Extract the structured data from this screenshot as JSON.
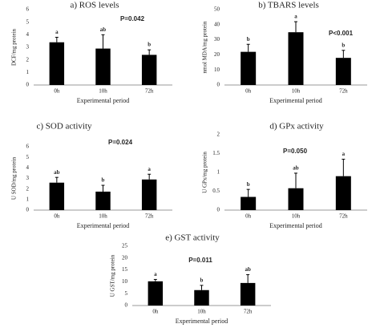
{
  "chart_data": [
    {
      "type": "bar",
      "title": "a) ROS levels",
      "annotation": "P=0.042",
      "xlabel": "Experimental period",
      "ylabel": "DCF/mg protein",
      "color": "#000000",
      "categories": [
        "0h",
        "10h",
        "72h"
      ],
      "values": [
        3.4,
        2.9,
        2.4
      ],
      "errors": [
        0.4,
        1.1,
        0.4
      ],
      "letters": [
        "a",
        "ab",
        "b"
      ],
      "ylim": [
        0,
        6
      ],
      "yticks": [
        0,
        1,
        2,
        3,
        4,
        5,
        6
      ]
    },
    {
      "type": "bar",
      "title": "b) TBARS levels",
      "annotation": "P<0.001",
      "xlabel": "Experimental period",
      "ylabel": "nmol MDA/mg protein",
      "color": "#000000",
      "categories": [
        "0h",
        "10h",
        "72h"
      ],
      "values": [
        22,
        35,
        18
      ],
      "errors": [
        5,
        7,
        5
      ],
      "letters": [
        "b",
        "a",
        "b"
      ],
      "ylim": [
        0,
        50
      ],
      "yticks": [
        0,
        10,
        20,
        30,
        40,
        50
      ]
    },
    {
      "type": "bar",
      "title": "c) SOD activity",
      "annotation": "P=0.024",
      "xlabel": "Experimental period",
      "ylabel": "U SOD/mg protein",
      "color": "#000000",
      "categories": [
        "0h",
        "10h",
        "72h"
      ],
      "values": [
        2.6,
        1.75,
        2.9
      ],
      "errors": [
        0.5,
        0.6,
        0.5
      ],
      "letters": [
        "ab",
        "b",
        "a"
      ],
      "ylim": [
        0,
        6
      ],
      "yticks": [
        0,
        1,
        2,
        3,
        4,
        5,
        6
      ]
    },
    {
      "type": "bar",
      "title": "d) GPx activity",
      "annotation": "P=0.050",
      "xlabel": "Experimental period",
      "ylabel": "U GPx/mg protein",
      "color": "#000000",
      "categories": [
        "0h",
        "10h",
        "72h"
      ],
      "values": [
        0.35,
        0.58,
        0.9
      ],
      "errors": [
        0.2,
        0.4,
        0.45
      ],
      "letters": [
        "b",
        "ab",
        "a"
      ],
      "ylim": [
        0,
        2
      ],
      "yticks": [
        0,
        0.5,
        1,
        1.5,
        2
      ]
    },
    {
      "type": "bar",
      "title": "e) GST activity",
      "annotation": "P=0.011",
      "xlabel": "Experimental period",
      "ylabel": "U GST/mg protein",
      "color": "#000000",
      "categories": [
        "0h",
        "10h",
        "72h"
      ],
      "values": [
        10.2,
        6.5,
        9.5
      ],
      "errors": [
        0.8,
        2,
        3.5
      ],
      "letters": [
        "a",
        "b",
        "ab"
      ],
      "ylim": [
        0,
        25
      ],
      "yticks": [
        0,
        5,
        10,
        15,
        20,
        25
      ]
    }
  ]
}
